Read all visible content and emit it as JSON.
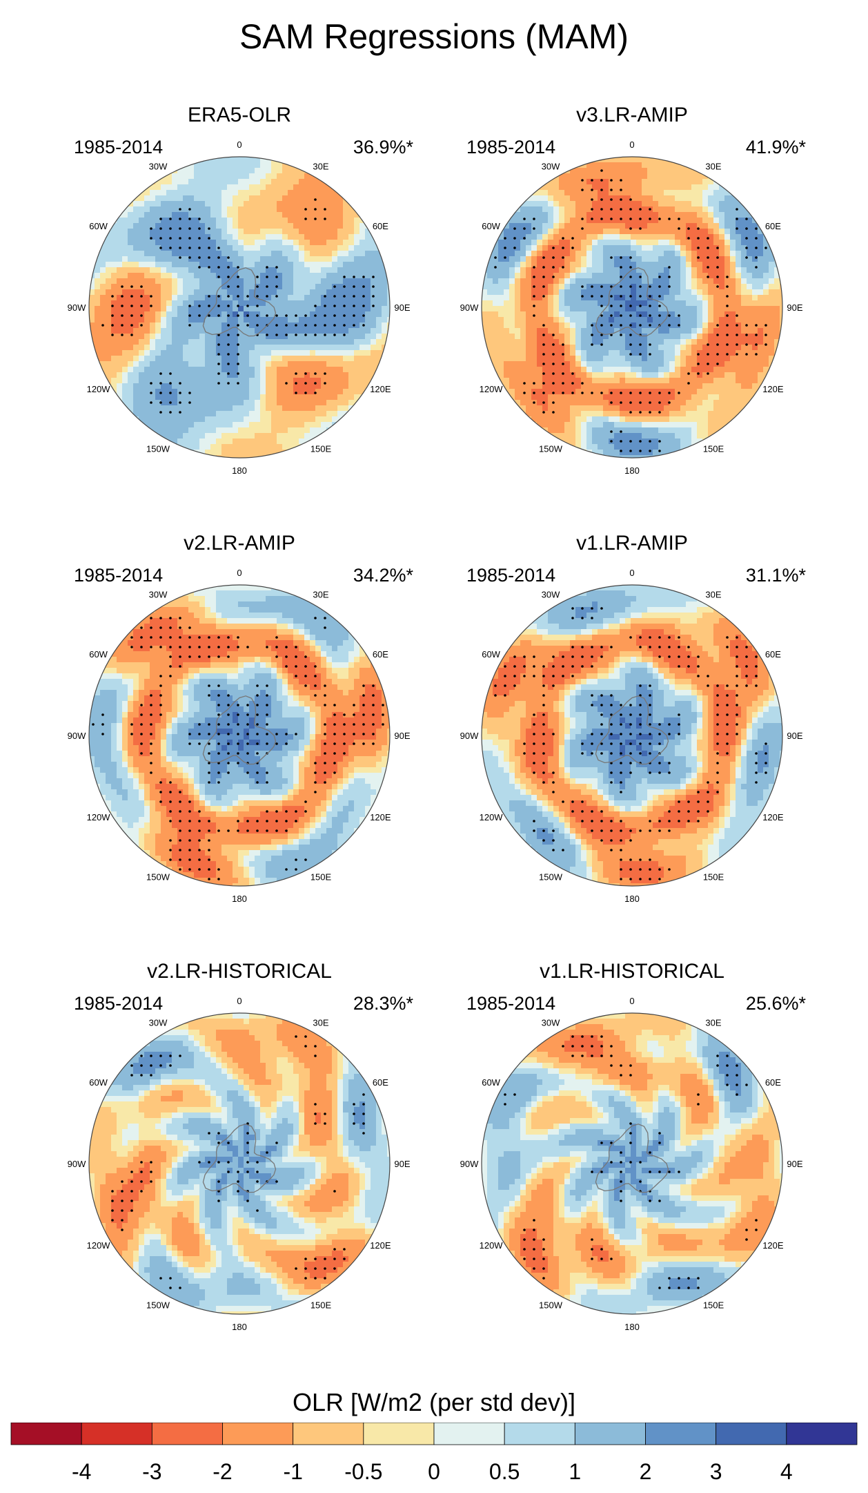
{
  "title": "SAM Regressions (MAM)",
  "period": "1985-2014",
  "longitude_labels": [
    "0",
    "30E",
    "60E",
    "90E",
    "120E",
    "150E",
    "180",
    "150W",
    "120W",
    "90W",
    "60W",
    "30W"
  ],
  "panels": [
    {
      "name": "ERA5-OLR",
      "pct": "36.9%*",
      "pattern": "era5"
    },
    {
      "name": "v3.LR-AMIP",
      "pct": "41.9%*",
      "pattern": "ring"
    },
    {
      "name": "v2.LR-AMIP",
      "pct": "34.2%*",
      "pattern": "ring"
    },
    {
      "name": "v1.LR-AMIP",
      "pct": "31.1%*",
      "pattern": "ring"
    },
    {
      "name": "v2.LR-HISTORICAL",
      "pct": "28.3%*",
      "pattern": "weak"
    },
    {
      "name": "v1.LR-HISTORICAL",
      "pct": "25.6%*",
      "pattern": "weak"
    }
  ],
  "colorbar": {
    "title": "OLR [W/m2 (per std dev)]",
    "ticks": [
      "-4",
      "-3",
      "-2",
      "-1",
      "-0.5",
      "0",
      "0.5",
      "1",
      "2",
      "3",
      "4"
    ],
    "colors": [
      "#a50f26",
      "#d63027",
      "#f46d43",
      "#fd9b57",
      "#fec77c",
      "#f8e8a8",
      "#e3f2f0",
      "#b4daea",
      "#8cbbd9",
      "#6192c7",
      "#4269b0",
      "#313695"
    ]
  }
}
